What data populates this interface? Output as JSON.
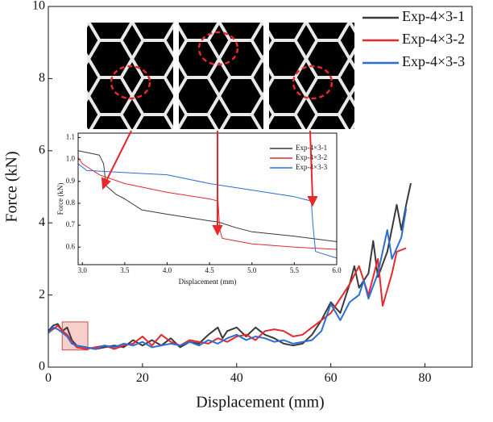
{
  "chart_data": [
    {
      "type": "line",
      "xlabel": "Displacement (mm)",
      "ylabel": "Force (kN)",
      "xlim": [
        0,
        90
      ],
      "ylim": [
        0,
        10
      ],
      "xticks": [
        0,
        20,
        40,
        60,
        80
      ],
      "yticks": [
        0,
        2,
        4,
        6,
        8,
        10
      ],
      "series": [
        {
          "name": "Exp-4×3-1",
          "color": "#3a3a3a",
          "x": [
            0,
            1,
            2,
            3,
            4,
            5,
            6,
            8,
            10,
            12,
            14,
            16,
            18,
            20,
            22,
            24,
            26,
            28,
            30,
            32,
            34,
            36,
            37,
            38,
            40,
            42,
            44,
            46,
            48,
            50,
            52,
            54,
            56,
            58,
            60,
            62,
            64,
            65,
            66,
            68,
            69,
            70,
            72,
            74,
            75,
            76,
            77
          ],
          "values": [
            1.0,
            1.15,
            1.2,
            1.0,
            1.1,
            0.75,
            0.6,
            0.55,
            0.5,
            0.55,
            0.6,
            0.55,
            0.75,
            0.6,
            0.75,
            0.6,
            0.8,
            0.55,
            0.7,
            0.65,
            0.9,
            1.1,
            0.8,
            1.0,
            1.1,
            0.85,
            1.1,
            0.9,
            0.8,
            0.65,
            0.6,
            0.65,
            0.9,
            1.3,
            1.8,
            1.5,
            2.3,
            2.8,
            2.2,
            2.6,
            3.5,
            2.5,
            3.2,
            4.5,
            3.8,
            4.5,
            5.1
          ]
        },
        {
          "name": "Exp-4×3-2",
          "color": "#e8282b",
          "x": [
            0,
            1,
            2,
            3,
            4,
            5,
            6,
            8,
            10,
            12,
            14,
            16,
            18,
            20,
            22,
            24,
            26,
            28,
            30,
            32,
            34,
            36,
            38,
            40,
            42,
            44,
            46,
            48,
            50,
            52,
            54,
            56,
            58,
            60,
            62,
            64,
            66,
            68,
            70,
            71,
            73,
            74,
            76
          ],
          "values": [
            0.95,
            1.05,
            1.15,
            1.0,
            0.9,
            0.7,
            0.55,
            0.5,
            0.55,
            0.6,
            0.5,
            0.6,
            0.65,
            0.85,
            0.6,
            0.9,
            0.7,
            0.6,
            0.75,
            0.7,
            0.65,
            0.8,
            0.7,
            0.85,
            0.9,
            0.75,
            1.0,
            1.05,
            1.0,
            0.85,
            0.9,
            1.1,
            1.3,
            1.5,
            1.9,
            2.3,
            2.8,
            2.0,
            3.0,
            1.7,
            2.6,
            3.2,
            3.3
          ]
        },
        {
          "name": "Exp-4×3-3",
          "color": "#2a6fd6",
          "x": [
            0,
            1,
            2,
            3,
            4,
            5,
            6,
            8,
            10,
            12,
            14,
            16,
            18,
            20,
            22,
            24,
            26,
            28,
            30,
            32,
            34,
            36,
            38,
            40,
            42,
            44,
            46,
            48,
            50,
            52,
            54,
            56,
            58,
            60,
            62,
            64,
            66,
            67,
            68,
            70,
            72,
            73,
            75,
            76
          ],
          "values": [
            0.95,
            1.1,
            1.05,
            0.95,
            0.85,
            0.65,
            0.6,
            0.55,
            0.5,
            0.6,
            0.55,
            0.65,
            0.6,
            0.7,
            0.55,
            0.6,
            0.65,
            0.6,
            0.7,
            0.6,
            0.75,
            0.65,
            0.8,
            0.9,
            0.75,
            0.85,
            0.8,
            0.7,
            0.75,
            0.65,
            0.7,
            0.75,
            1.0,
            1.75,
            1.3,
            1.8,
            2.0,
            2.4,
            1.9,
            2.6,
            3.8,
            3.0,
            3.6,
            4.4
          ]
        }
      ]
    },
    {
      "type": "line",
      "xlabel": "Displacement (mm)",
      "ylabel": "Force (kN)",
      "xlim": [
        2.95,
        6.0
      ],
      "ylim": [
        0.52,
        1.12
      ],
      "xticks": [
        {
          "value": 3,
          "label": "3.0"
        },
        3.5,
        {
          "value": 4,
          "label": "4.0"
        },
        4.5,
        {
          "value": 5,
          "label": "5.0"
        },
        5.5,
        {
          "value": 6,
          "label": "6.0"
        }
      ],
      "yticks": [
        0.6,
        0.7,
        0.8,
        0.9,
        {
          "value": 1,
          "label": "1.0"
        },
        1.1
      ],
      "series": [
        {
          "name": "Exp-4×3-1",
          "color": "#3a3a3a",
          "x": [
            2.95,
            3.2,
            3.25,
            3.28,
            3.4,
            3.5,
            3.7,
            4.0,
            4.5,
            4.6,
            4.8,
            5.0,
            5.5,
            6.0
          ],
          "values": [
            1.04,
            1.02,
            0.98,
            0.88,
            0.84,
            0.82,
            0.77,
            0.75,
            0.72,
            0.715,
            0.69,
            0.67,
            0.65,
            0.625
          ]
        },
        {
          "name": "Exp-4×3-2",
          "color": "#e8282b",
          "x": [
            2.95,
            3.0,
            3.2,
            3.5,
            4.0,
            4.5,
            4.6,
            4.62,
            4.65,
            5.0,
            5.5,
            6.0
          ],
          "values": [
            1.01,
            0.98,
            0.93,
            0.89,
            0.85,
            0.82,
            0.81,
            0.68,
            0.64,
            0.615,
            0.6,
            0.59
          ]
        },
        {
          "name": "Exp-4×3-3",
          "color": "#2a6fd6",
          "x": [
            2.95,
            3.05,
            3.5,
            4.0,
            4.5,
            5.0,
            5.5,
            5.7,
            5.72,
            5.75,
            6.0
          ],
          "values": [
            0.98,
            0.95,
            0.94,
            0.93,
            0.89,
            0.86,
            0.83,
            0.81,
            0.7,
            0.58,
            0.55
          ]
        }
      ]
    }
  ]
}
